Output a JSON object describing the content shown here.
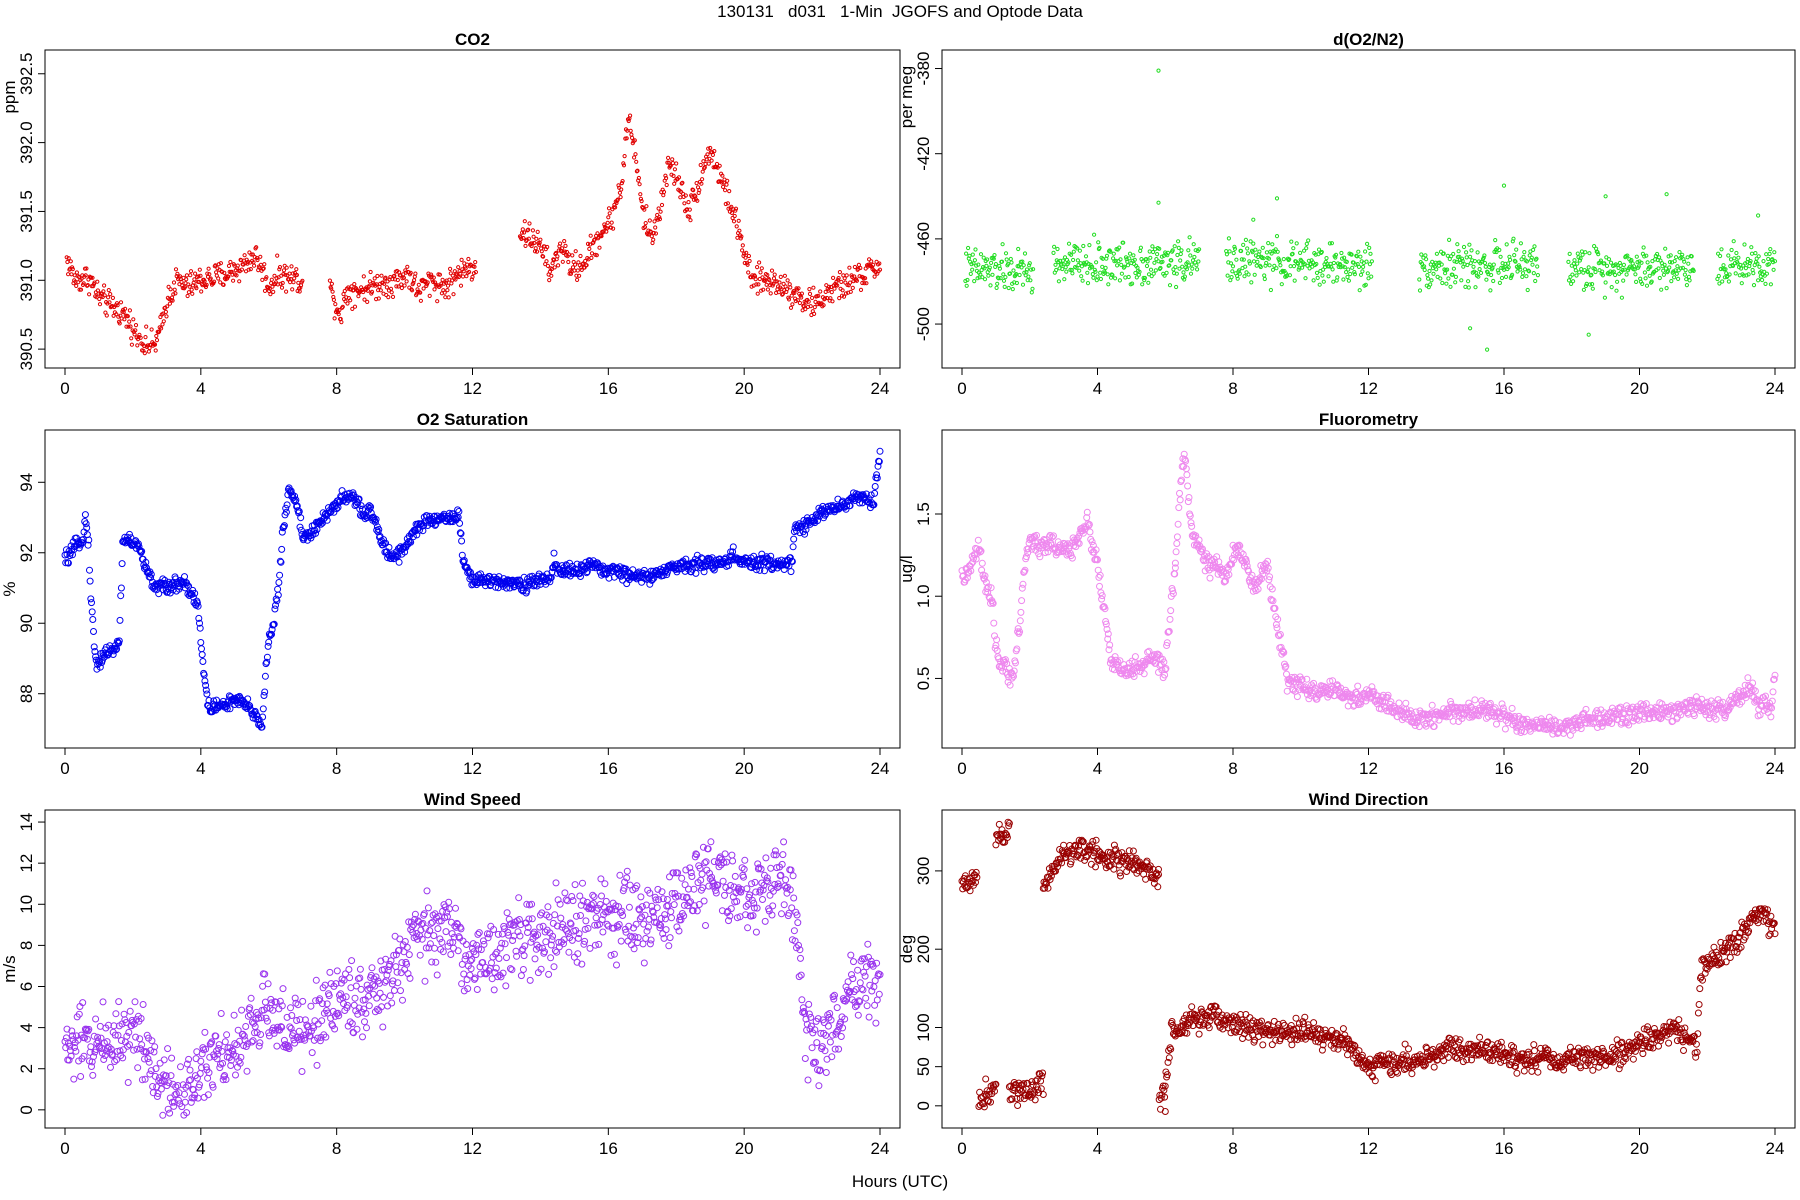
{
  "title": "130131   d031   1-Min  JGOFS and Optode Data",
  "xlabel": "Hours (UTC)",
  "chart_data": [
    {
      "type": "scatter",
      "title": "CO2",
      "xlabel": "",
      "ylabel": "ppm",
      "xlim": [
        0,
        24
      ],
      "ylim": [
        390.45,
        392.6
      ],
      "xticks": [
        0,
        4,
        8,
        12,
        16,
        20,
        24
      ],
      "yticks": [
        390.5,
        391.0,
        391.5,
        392.0,
        392.5
      ],
      "ytick_labels": [
        "390.5",
        "391.0",
        "391.5",
        "392.0",
        "392.5"
      ],
      "color": "#e00000",
      "marker_radius": 1.6,
      "segments": [
        [
          0.05,
          7.0
        ],
        [
          7.8,
          12.1
        ],
        [
          13.4,
          24.0
        ]
      ],
      "noise": 0.05,
      "x": [
        0,
        0.3,
        0.7,
        1.0,
        1.3,
        1.6,
        1.9,
        2.1,
        2.3,
        2.6,
        2.8,
        3.0,
        3.3,
        3.6,
        4.0,
        4.4,
        4.8,
        5.2,
        5.6,
        5.8,
        6.0,
        6.3,
        6.6,
        7.0,
        7.8,
        8.1,
        8.3,
        8.6,
        9.0,
        9.4,
        9.8,
        10.1,
        10.4,
        10.8,
        11.2,
        11.6,
        12.0,
        13.4,
        13.8,
        14.1,
        14.3,
        14.6,
        14.9,
        15.2,
        15.5,
        15.8,
        16.1,
        16.4,
        16.6,
        16.8,
        17.0,
        17.3,
        17.8,
        18.1,
        18.4,
        18.7,
        19.0,
        19.3,
        19.6,
        19.9,
        20.2,
        20.6,
        21.0,
        21.4,
        21.8,
        22.1,
        22.4,
        22.8,
        23.2,
        23.6,
        24.0
      ],
      "y": [
        391.18,
        391.0,
        391.02,
        390.88,
        390.82,
        390.78,
        390.7,
        390.6,
        390.55,
        390.52,
        390.62,
        390.85,
        391.0,
        390.95,
        391.0,
        391.02,
        391.05,
        391.1,
        391.18,
        391.08,
        390.95,
        391.05,
        391.02,
        391.0,
        390.95,
        390.75,
        390.92,
        390.93,
        390.95,
        390.98,
        391.0,
        391.05,
        390.92,
        391.0,
        390.95,
        391.05,
        391.1,
        391.35,
        391.3,
        391.2,
        391.05,
        391.25,
        391.1,
        391.1,
        391.22,
        391.35,
        391.45,
        391.72,
        392.2,
        391.9,
        391.5,
        391.3,
        391.85,
        391.7,
        391.5,
        391.75,
        391.95,
        391.75,
        391.55,
        391.3,
        391.0,
        391.0,
        390.98,
        390.92,
        390.85,
        390.82,
        390.9,
        390.95,
        391.0,
        391.05,
        391.12
      ]
    },
    {
      "type": "scatter",
      "title": "d(O2/N2)",
      "xlabel": "",
      "ylabel": "per meg",
      "xlim": [
        0,
        24
      ],
      "ylim": [
        -515,
        -376
      ],
      "xticks": [
        0,
        4,
        8,
        12,
        16,
        20,
        24
      ],
      "yticks": [
        -380,
        -420,
        -460,
        -500
      ],
      "ytick_labels": [
        "-380",
        "-420",
        "-460",
        "-500"
      ],
      "color": "#22dd22",
      "marker_radius": 1.6,
      "segments": [
        [
          0.1,
          2.1
        ],
        [
          2.7,
          7.0
        ],
        [
          7.8,
          12.1
        ],
        [
          13.5,
          17.0
        ],
        [
          17.9,
          21.6
        ],
        [
          22.3,
          24.0
        ]
      ],
      "noise": 5.0,
      "outliers": [
        [
          5.8,
          -381
        ],
        [
          5.8,
          -443
        ],
        [
          8.6,
          -451
        ],
        [
          9.3,
          -441
        ],
        [
          15.0,
          -502
        ],
        [
          15.5,
          -512
        ],
        [
          16.0,
          -435
        ],
        [
          18.5,
          -505
        ],
        [
          19.0,
          -440
        ],
        [
          20.8,
          -439
        ],
        [
          23.5,
          -449
        ]
      ],
      "x": [
        0.1,
        2.1,
        2.7,
        7.0,
        7.8,
        12.1,
        13.5,
        17.0,
        17.9,
        21.6,
        22.3,
        24.0
      ],
      "y": [
        -474,
        -476,
        -472,
        -471,
        -470,
        -473,
        -473,
        -472,
        -474,
        -473,
        -472,
        -472
      ]
    },
    {
      "type": "scatter",
      "title": "O2 Saturation",
      "xlabel": "",
      "ylabel": "%",
      "xlim": [
        0,
        24
      ],
      "ylim": [
        86.8,
        95.2
      ],
      "xticks": [
        0,
        4,
        8,
        12,
        16,
        20,
        24
      ],
      "yticks": [
        88,
        90,
        92,
        94
      ],
      "ytick_labels": [
        "88",
        "90",
        "92",
        "94"
      ],
      "color": "#0000ee",
      "marker_radius": 3.0,
      "segments": [
        [
          0.0,
          24.0
        ]
      ],
      "noise": 0.1,
      "x": [
        0,
        0.2,
        0.4,
        0.55,
        0.6,
        0.7,
        0.75,
        0.85,
        0.95,
        1.05,
        1.2,
        1.4,
        1.6,
        1.7,
        1.8,
        2.0,
        2.2,
        2.4,
        2.6,
        3.0,
        3.5,
        3.7,
        3.9,
        4.0,
        4.1,
        4.2,
        4.3,
        4.7,
        5.0,
        5.3,
        5.6,
        5.8,
        5.9,
        6.0,
        6.1,
        6.3,
        6.4,
        6.5,
        6.6,
        6.8,
        7.0,
        7.2,
        7.5,
        7.8,
        8.0,
        8.3,
        8.6,
        8.8,
        9.0,
        9.3,
        9.6,
        9.9,
        10.2,
        10.5,
        10.8,
        11.1,
        11.4,
        11.6,
        11.7,
        11.85,
        12.0,
        12.5,
        13.0,
        13.5,
        14.0,
        14.3,
        14.4,
        14.5,
        15.0,
        15.5,
        16.0,
        16.5,
        17.0,
        17.5,
        18.0,
        18.5,
        19.0,
        19.5,
        19.6,
        20.0,
        20.5,
        21.0,
        21.4,
        21.5,
        21.7,
        22.0,
        22.5,
        23.0,
        23.3,
        23.6,
        23.8,
        23.9,
        24.0
      ],
      "y": [
        91.8,
        92.0,
        92.3,
        92.5,
        93.0,
        92.2,
        91.0,
        89.5,
        88.7,
        89.0,
        89.2,
        89.2,
        89.5,
        92.3,
        92.4,
        92.3,
        92.1,
        91.5,
        91.1,
        91.0,
        91.2,
        90.9,
        90.6,
        89.5,
        88.5,
        87.7,
        87.6,
        87.7,
        87.8,
        87.7,
        87.4,
        87.1,
        88.5,
        89.5,
        89.8,
        91.0,
        92.5,
        93.2,
        93.8,
        93.5,
        92.5,
        92.5,
        92.8,
        93.2,
        93.4,
        93.6,
        93.5,
        93.0,
        93.2,
        92.4,
        91.9,
        92.0,
        92.5,
        92.8,
        92.9,
        93.0,
        93.0,
        93.1,
        92.0,
        91.4,
        91.2,
        91.2,
        91.2,
        91.1,
        91.2,
        91.3,
        91.8,
        91.5,
        91.5,
        91.6,
        91.5,
        91.4,
        91.3,
        91.4,
        91.6,
        91.7,
        91.7,
        91.7,
        92.0,
        91.7,
        91.7,
        91.7,
        91.7,
        92.7,
        92.7,
        93.0,
        93.2,
        93.4,
        93.6,
        93.5,
        93.4,
        94.2,
        94.8
      ]
    },
    {
      "type": "scatter",
      "title": "Fluorometry",
      "xlabel": "",
      "ylabel": "ug/l",
      "xlim": [
        0,
        24
      ],
      "ylim": [
        0.15,
        1.95
      ],
      "xticks": [
        0,
        4,
        8,
        12,
        16,
        20,
        24
      ],
      "yticks": [
        0.5,
        1.0,
        1.5
      ],
      "ytick_labels": [
        "0.5",
        "1.0",
        "1.5"
      ],
      "color": "#ee88ee",
      "marker_radius": 3.0,
      "segments": [
        [
          0.0,
          6.3
        ],
        [
          6.3,
          24.0
        ]
      ],
      "noise": 0.03,
      "x": [
        0,
        0.2,
        0.4,
        0.5,
        0.7,
        0.8,
        0.9,
        1.0,
        1.1,
        1.3,
        1.5,
        1.7,
        1.8,
        2.0,
        2.3,
        2.6,
        3.0,
        3.3,
        3.5,
        3.7,
        3.8,
        4.0,
        4.2,
        4.4,
        4.7,
        5.0,
        5.3,
        5.6,
        5.8,
        6.0,
        6.3,
        6.5,
        6.6,
        6.7,
        6.8,
        7.0,
        7.2,
        7.5,
        7.8,
        8.0,
        8.2,
        8.4,
        8.6,
        8.8,
        9.0,
        9.2,
        9.4,
        9.6,
        10.0,
        10.5,
        11.0,
        11.5,
        12.0,
        12.5,
        13.0,
        13.5,
        14.0,
        14.5,
        15.0,
        15.5,
        16.0,
        16.5,
        17.0,
        17.5,
        18.0,
        18.5,
        19.0,
        19.5,
        20.0,
        20.5,
        21.0,
        21.5,
        22.0,
        22.5,
        23.0,
        23.3,
        23.5,
        23.7,
        23.9,
        24.0
      ],
      "y": [
        1.1,
        1.15,
        1.25,
        1.3,
        1.05,
        1.0,
        0.95,
        0.7,
        0.6,
        0.55,
        0.52,
        0.8,
        1.1,
        1.35,
        1.3,
        1.32,
        1.28,
        1.3,
        1.4,
        1.45,
        1.35,
        1.2,
        0.9,
        0.6,
        0.55,
        0.55,
        0.58,
        0.62,
        0.6,
        0.55,
        1.2,
        1.8,
        1.85,
        1.55,
        1.4,
        1.3,
        1.2,
        1.18,
        1.1,
        1.25,
        1.3,
        1.2,
        1.05,
        1.1,
        1.2,
        0.95,
        0.7,
        0.5,
        0.45,
        0.42,
        0.42,
        0.38,
        0.4,
        0.35,
        0.28,
        0.25,
        0.28,
        0.3,
        0.3,
        0.32,
        0.27,
        0.22,
        0.2,
        0.2,
        0.22,
        0.25,
        0.25,
        0.28,
        0.3,
        0.28,
        0.3,
        0.35,
        0.3,
        0.3,
        0.4,
        0.45,
        0.32,
        0.35,
        0.3,
        0.55
      ]
    },
    {
      "type": "scatter",
      "title": "Wind Speed",
      "xlabel": "",
      "ylabel": "m/s",
      "xlim": [
        0,
        24
      ],
      "ylim": [
        -0.3,
        14.1
      ],
      "xticks": [
        0,
        4,
        8,
        12,
        16,
        20,
        24
      ],
      "yticks": [
        0,
        2,
        4,
        6,
        8,
        10,
        12,
        14
      ],
      "ytick_labels": [
        "0",
        "2",
        "4",
        "6",
        "8",
        "10",
        "12",
        "14"
      ],
      "color": "#9933ee",
      "marker_radius": 3.0,
      "segments": [
        [
          0.0,
          24.0
        ]
      ],
      "noise": 0.9,
      "x": [
        0,
        1.0,
        2.0,
        2.3,
        2.7,
        3.0,
        3.3,
        3.5,
        3.8,
        4.0,
        4.5,
        5.0,
        5.5,
        6.0,
        6.5,
        7.0,
        7.5,
        8.0,
        8.5,
        9.0,
        9.5,
        10.0,
        10.5,
        11.0,
        11.5,
        12.0,
        13.0,
        14.0,
        15.0,
        16.0,
        17.0,
        18.0,
        18.5,
        19.0,
        19.5,
        20.0,
        20.5,
        21.0,
        21.3,
        21.5,
        21.7,
        21.8,
        22.0,
        22.3,
        22.7,
        23.0,
        23.3,
        23.6,
        24.0
      ],
      "y": [
        3.0,
        3.3,
        3.8,
        3.5,
        2.0,
        1.2,
        1.0,
        0.7,
        1.2,
        2.5,
        3.0,
        2.5,
        4.0,
        5.0,
        4.0,
        3.5,
        4.5,
        5.5,
        5.5,
        5.5,
        6.0,
        7.5,
        8.5,
        8.8,
        8.5,
        7.0,
        8.0,
        8.5,
        9.0,
        9.5,
        9.0,
        10.0,
        11.0,
        11.5,
        11.0,
        10.0,
        10.5,
        11.5,
        11.0,
        9.0,
        6.0,
        4.0,
        3.0,
        3.5,
        4.0,
        5.0,
        6.5,
        6.5,
        5.8
      ]
    },
    {
      "type": "scatter",
      "title": "Wind Direction",
      "xlabel": "",
      "ylabel": "deg",
      "xlim": [
        0,
        24
      ],
      "ylim": [
        -13,
        365
      ],
      "xticks": [
        0,
        4,
        8,
        12,
        16,
        20,
        24
      ],
      "yticks": [
        0,
        50,
        100,
        200,
        300
      ],
      "ytick_labels": [
        "0",
        "50",
        "100",
        "200",
        "300"
      ],
      "color": "#990000",
      "marker_radius": 3.0,
      "segments": [
        [
          0.0,
          0.45
        ],
        [
          0.5,
          1.0
        ],
        [
          1.0,
          1.4
        ],
        [
          1.4,
          2.4
        ],
        [
          2.4,
          5.8
        ],
        [
          5.8,
          6.0
        ],
        [
          6.0,
          24.0
        ]
      ],
      "noise": 8.0,
      "x": [
        0.0,
        0.45,
        0.5,
        0.7,
        1.0,
        1.0,
        1.4,
        1.4,
        1.6,
        2.0,
        2.4,
        2.4,
        3.0,
        3.5,
        4.0,
        4.5,
        5.0,
        5.5,
        5.8,
        5.8,
        6.0,
        6.0,
        6.2,
        6.5,
        7.0,
        7.5,
        8.0,
        8.5,
        9.0,
        9.5,
        10.0,
        10.5,
        11.0,
        11.5,
        12.0,
        12.5,
        13.0,
        13.5,
        14.0,
        14.5,
        15.0,
        15.5,
        16.0,
        16.5,
        17.0,
        17.5,
        18.0,
        18.5,
        19.0,
        19.5,
        20.0,
        20.5,
        21.0,
        21.5,
        21.7,
        21.8,
        22.0,
        22.3,
        22.6,
        23.0,
        23.3,
        23.6,
        24.0
      ],
      "y": [
        280,
        295,
        5,
        15,
        25,
        350,
        350,
        15,
        20,
        20,
        30,
        285,
        320,
        330,
        320,
        315,
        310,
        300,
        290,
        15,
        10,
        30,
        90,
        100,
        110,
        115,
        105,
        100,
        95,
        92,
        95,
        92,
        85,
        75,
        50,
        55,
        55,
        60,
        65,
        75,
        70,
        70,
        65,
        60,
        60,
        60,
        60,
        62,
        62,
        65,
        80,
        90,
        95,
        85,
        75,
        170,
        180,
        185,
        200,
        215,
        240,
        245,
        230
      ]
    }
  ]
}
